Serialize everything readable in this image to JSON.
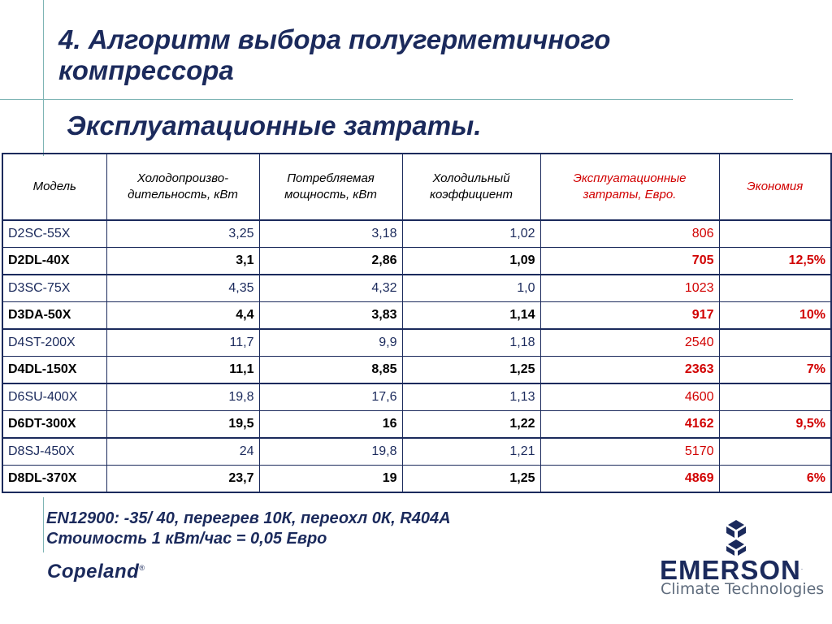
{
  "title": "4. Алгоритм выбора полугерметичного компрессора",
  "subtitle": "Эксплуатационные затраты.",
  "table": {
    "headers": [
      "Модель",
      "Холодопроизво-дительность, кВт",
      "Потребляемая мощность, кВт",
      "Холодильный коэффициент",
      "Эксплуатационные затраты, Евро.",
      "Экономия"
    ],
    "rows": [
      [
        "D2SC-55X",
        "3,25",
        "3,18",
        "1,02",
        "806",
        ""
      ],
      [
        "D2DL-40X",
        "3,1",
        "2,86",
        "1,09",
        "705",
        "12,5%"
      ],
      [
        "D3SC-75X",
        "4,35",
        "4,32",
        "1,0",
        "1023",
        ""
      ],
      [
        "D3DA-50X",
        "4,4",
        "3,83",
        "1,14",
        "917",
        "10%"
      ],
      [
        "D4ST-200X",
        "11,7",
        "9,9",
        "1,18",
        "2540",
        ""
      ],
      [
        "D4DL-150X",
        "11,1",
        "8,85",
        "1,25",
        "2363",
        "7%"
      ],
      [
        "D6SU-400X",
        "19,8",
        "17,6",
        "1,13",
        "4600",
        ""
      ],
      [
        "D6DT-300X",
        "19,5",
        "16",
        "1,22",
        "4162",
        "9,5%"
      ],
      [
        "D8SJ-450X",
        "24",
        "19,8",
        "1,21",
        "5170",
        ""
      ],
      [
        "D8DL-370X",
        "23,7",
        "19",
        "1,25",
        "4869",
        "6%"
      ]
    ]
  },
  "notes": [
    "EN12900: -35/ 40, перегрев 10К, переохл 0К, R404A",
    "Стоимость 1 кВт/час = 0,05 Евро"
  ],
  "brand_left": "Copeland",
  "brand_right": "EMERSON",
  "brand_right_sub": "Climate Technologies",
  "colors": {
    "navy": "#1b2a5c",
    "red": "#d10000",
    "rule": "#7fb5b5"
  }
}
